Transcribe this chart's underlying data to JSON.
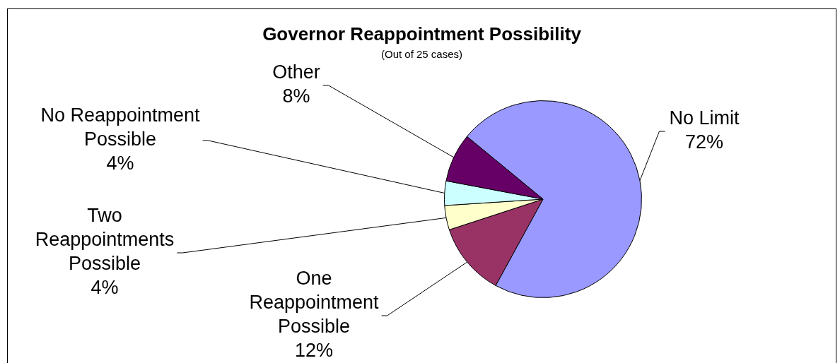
{
  "chart_data": {
    "type": "pie",
    "title": "Governor Reappointment Possibility",
    "subtitle": "(Out of 25 cases)",
    "categories": [
      "No Limit",
      "One Reappointment Possible",
      "Two Reappointments Possible",
      "No Reappointment Possible",
      "Other"
    ],
    "values": [
      72,
      12,
      4,
      4,
      8
    ],
    "value_labels": [
      "72%",
      "12%",
      "4%",
      "4%",
      "8%"
    ],
    "colors": [
      "#9999ff",
      "#993366",
      "#ffffcc",
      "#ccffff",
      "#660066"
    ]
  }
}
